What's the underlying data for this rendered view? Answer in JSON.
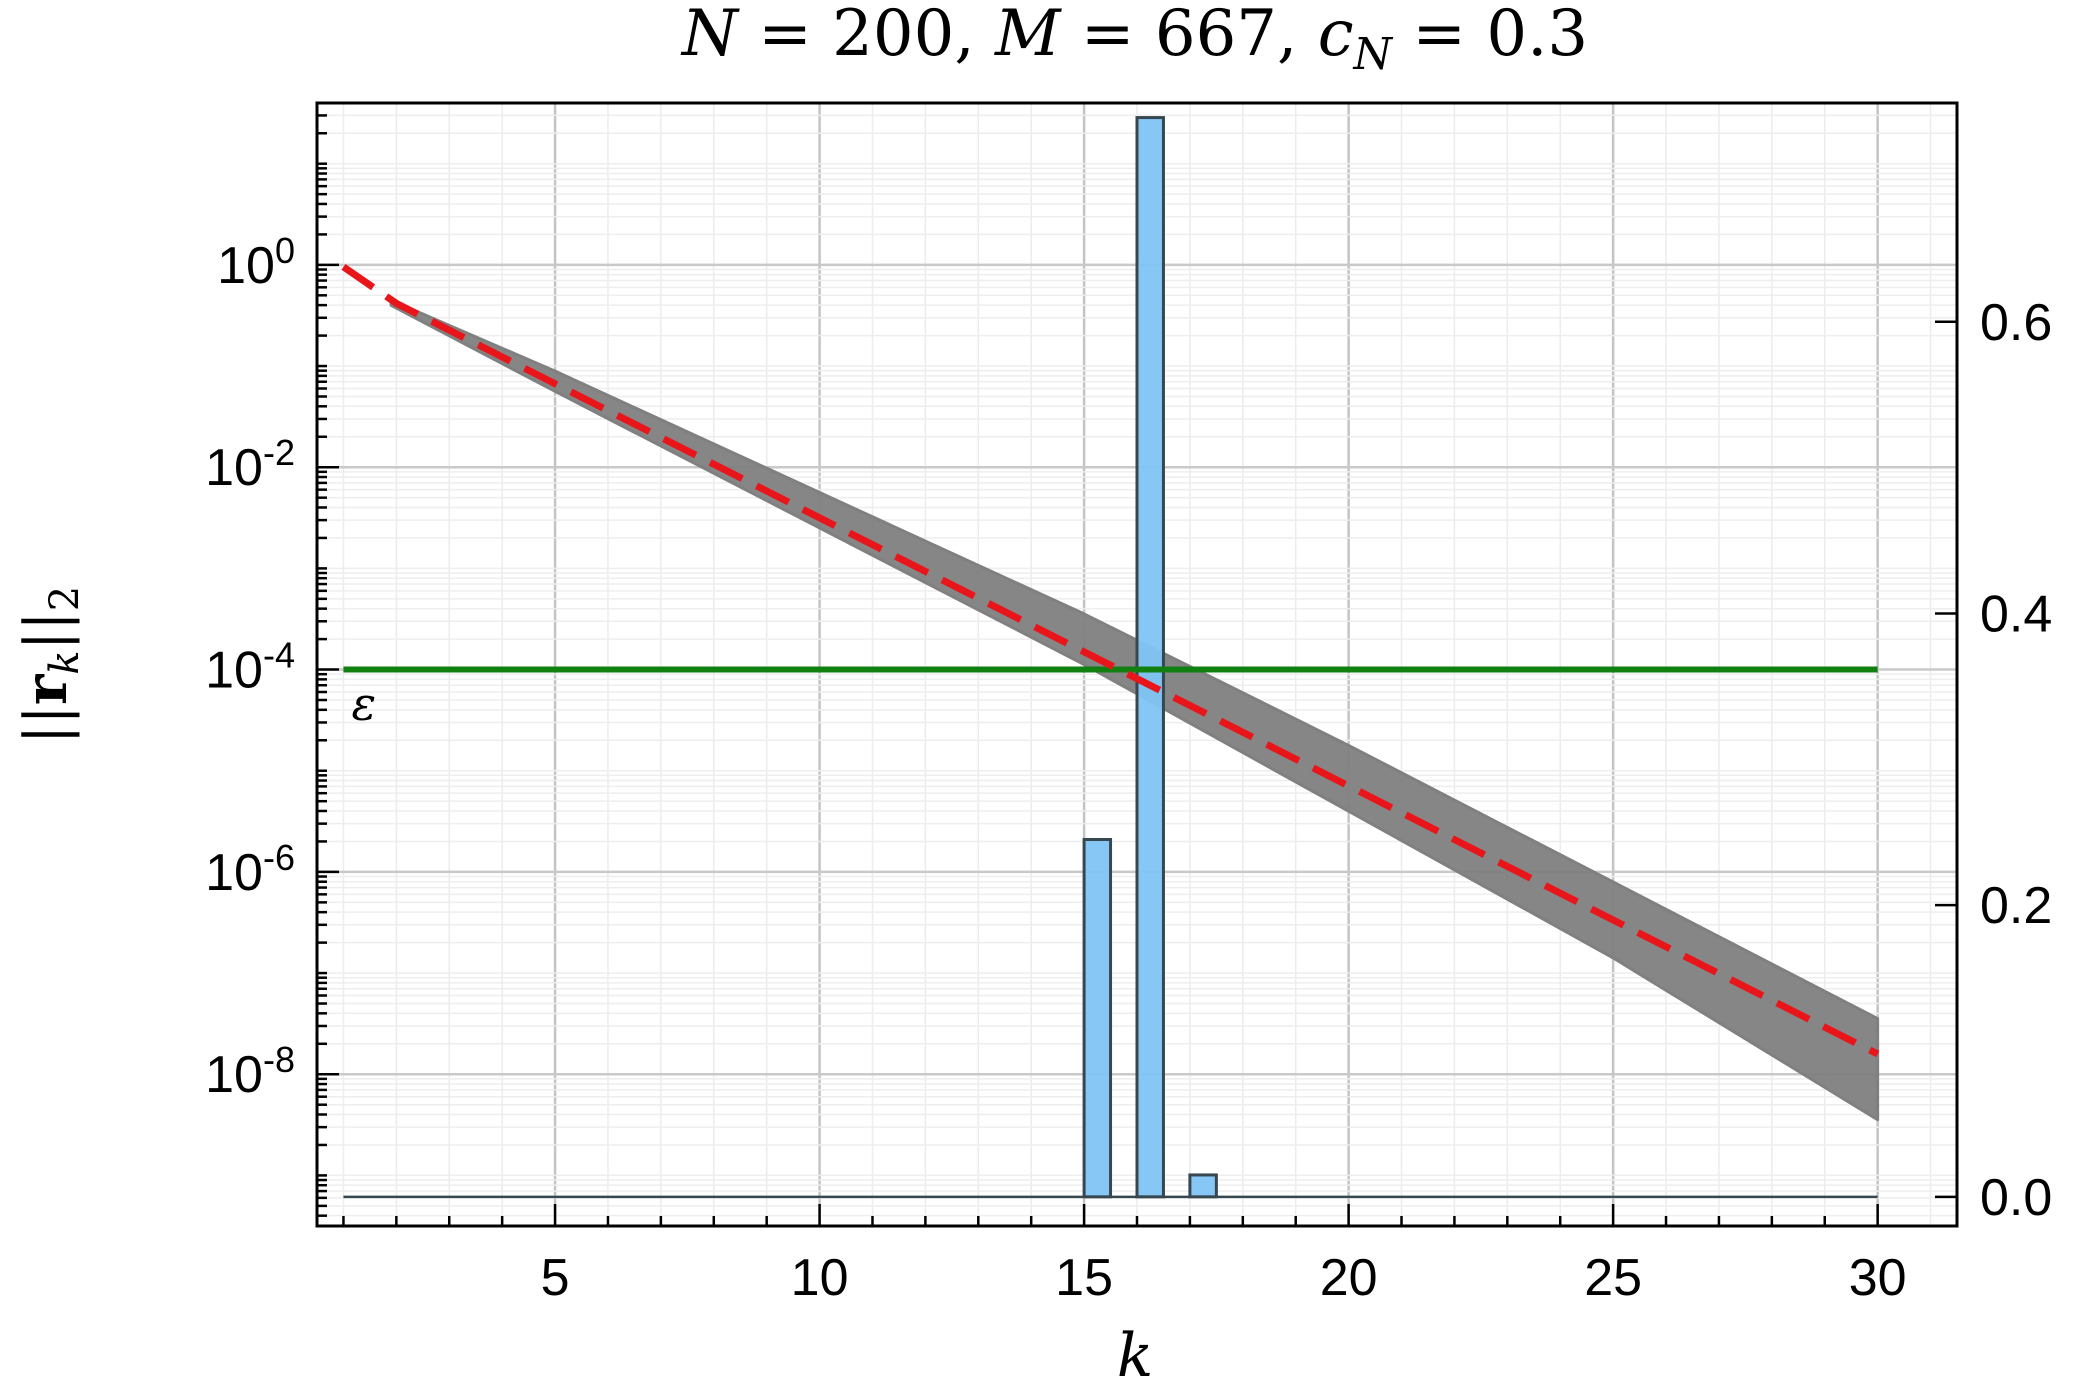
{
  "chart_data": {
    "type": "line",
    "title": {
      "parts": [
        "N",
        " = 200, ",
        "M",
        " = 667, ",
        "c",
        "N",
        " = 0.3"
      ]
    },
    "xlabel": "k",
    "ylabel": {
      "parts": [
        "||",
        "r",
        "k",
        "||",
        "2"
      ]
    },
    "x_range": [
      0.5,
      31.5
    ],
    "x_ticks": [
      5,
      10,
      15,
      20,
      25,
      30
    ],
    "y_left": {
      "scale": "log",
      "log_range": [
        -9.5,
        1.6
      ],
      "ticks": [
        {
          "exp": 0,
          "base": "10",
          "sup": "0"
        },
        {
          "exp": -2,
          "base": "10",
          "sup": "-2"
        },
        {
          "exp": -4,
          "base": "10",
          "sup": "-4"
        },
        {
          "exp": -6,
          "base": "10",
          "sup": "-6"
        },
        {
          "exp": -8,
          "base": "10",
          "sup": "-8"
        }
      ]
    },
    "y_right": {
      "scale": "linear",
      "range": [
        -0.02,
        0.75
      ],
      "ticks": [
        "0.0",
        "0.2",
        "0.4",
        "0.6"
      ]
    },
    "grid": true,
    "epsilon": {
      "label": "ε",
      "log_value": -4,
      "color": "#118011"
    },
    "series": [
      {
        "kind": "band",
        "color": "#808080",
        "x": [
          1.9,
          5,
          10,
          15,
          20,
          25,
          30
        ],
        "log_upper": [
          -0.35,
          -1.05,
          -2.25,
          -3.45,
          -4.75,
          -6.1,
          -7.45
        ],
        "log_lower": [
          -0.4,
          -1.25,
          -2.6,
          -3.95,
          -5.4,
          -6.85,
          -8.45
        ]
      },
      {
        "kind": "dashed-line",
        "color": "#e8161a",
        "x": [
          1,
          2,
          30
        ],
        "log_y": [
          -0.02,
          -0.38,
          -7.8
        ]
      }
    ],
    "histogram": {
      "color": "#7fc4f5",
      "edge_color": "#37474f",
      "bins": [
        {
          "x0": 15,
          "x1": 15.5,
          "value": 0.245
        },
        {
          "x0": 16,
          "x1": 16.5,
          "value": 0.74
        },
        {
          "x0": 17,
          "x1": 17.5,
          "value": 0.015
        }
      ],
      "baseline_x": [
        1,
        30
      ]
    }
  }
}
